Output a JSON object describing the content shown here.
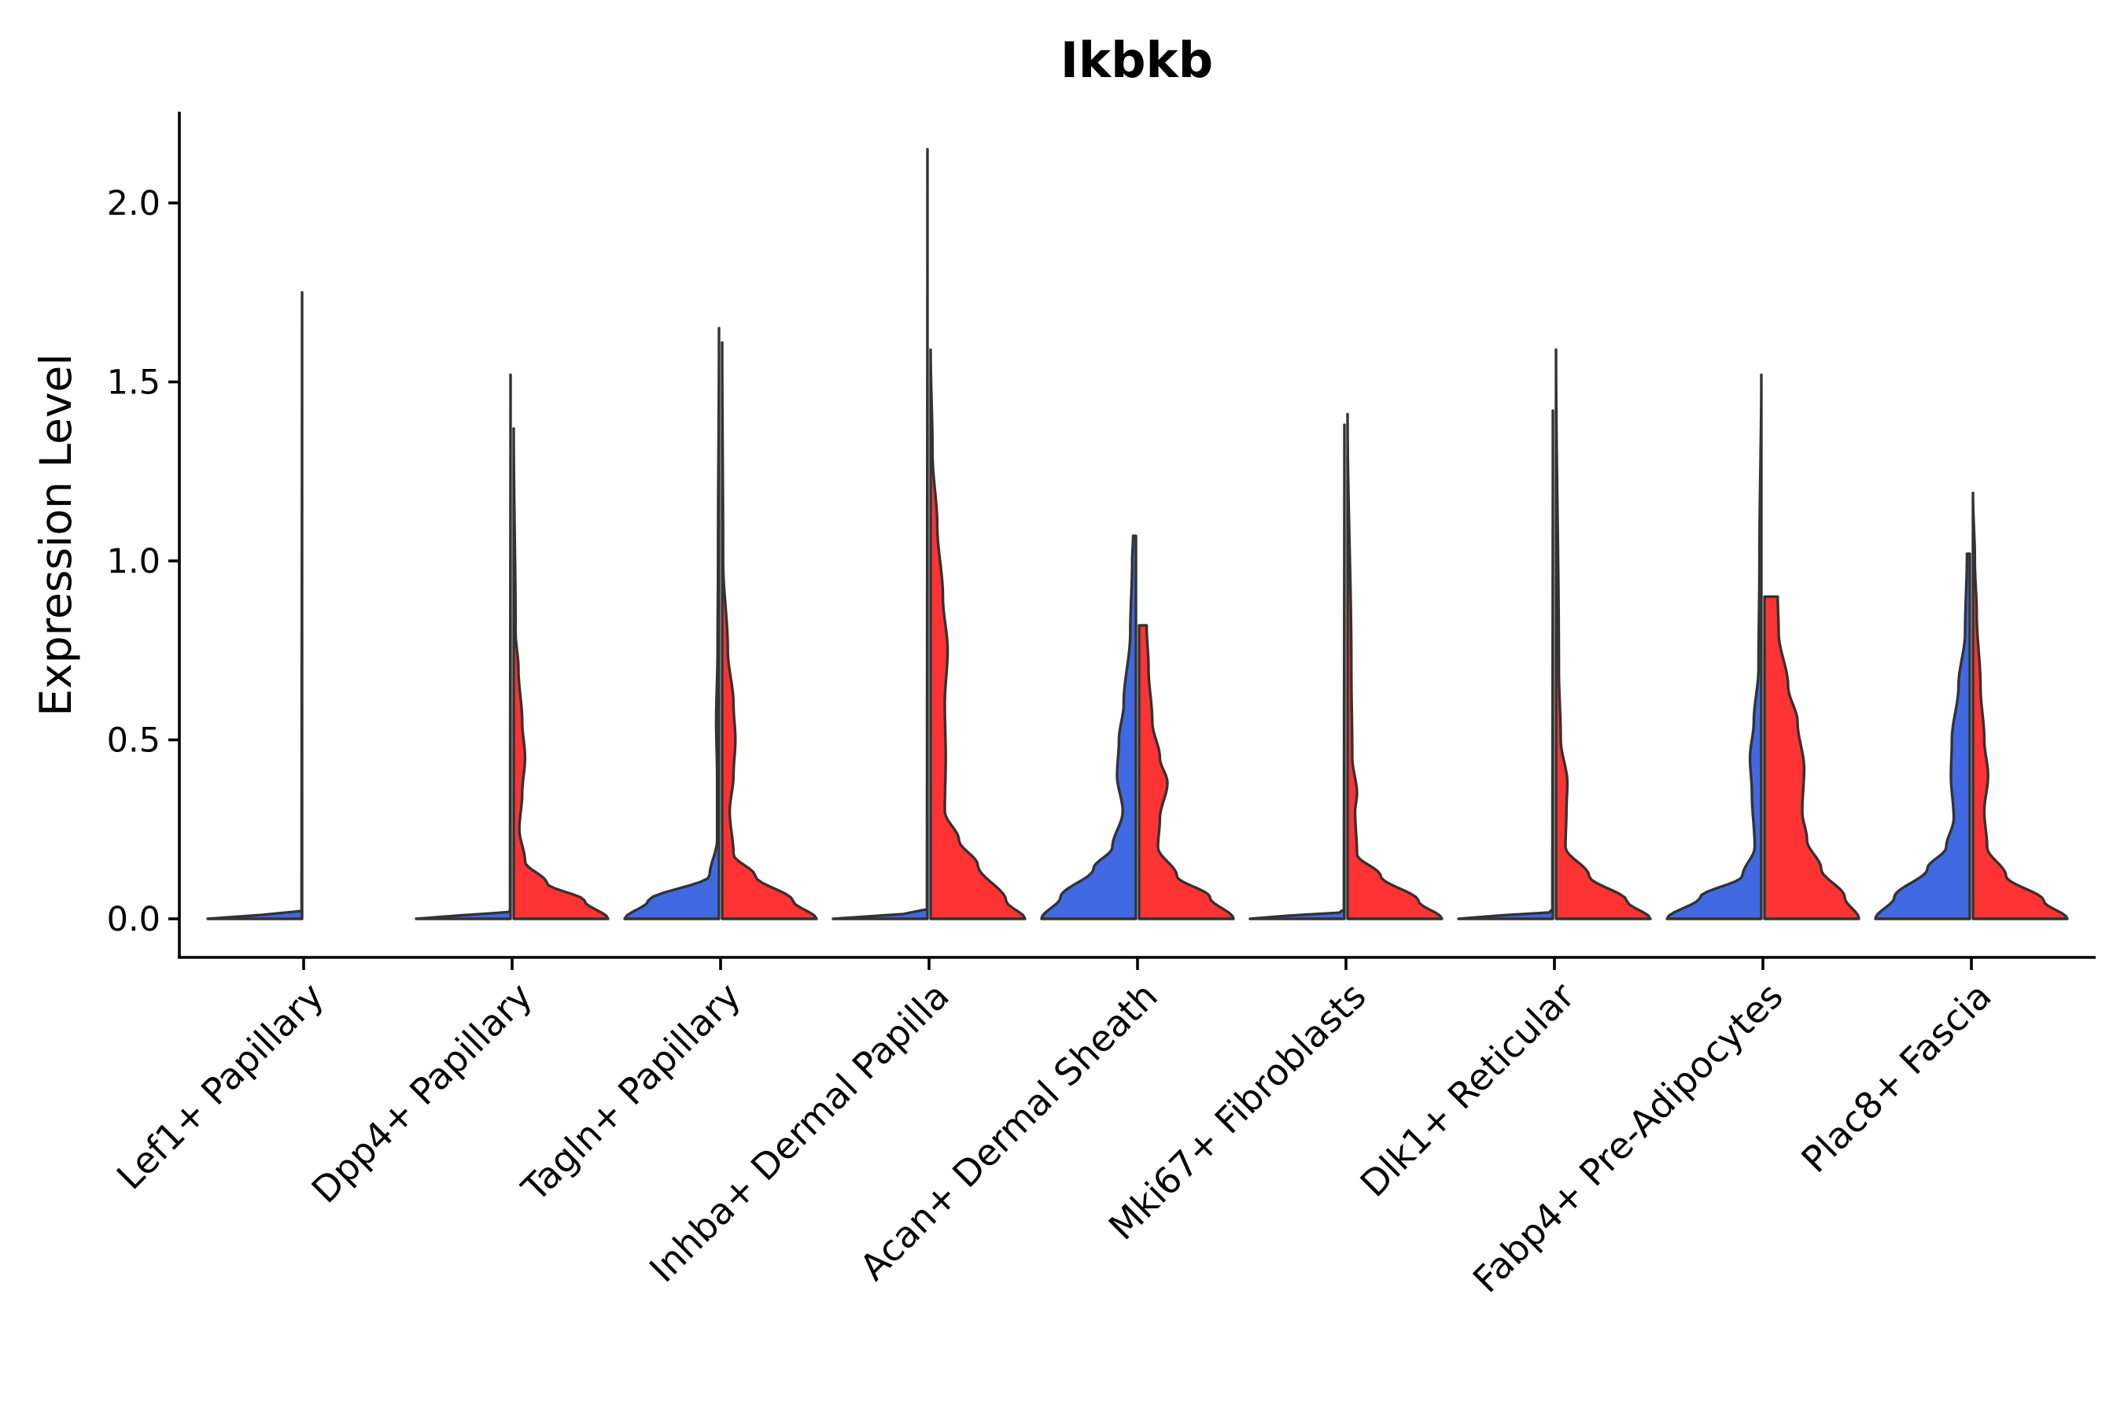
{
  "chart_data": {
    "type": "violin",
    "title": "Ikbkb",
    "xlabel": "",
    "ylabel": "Expression Level",
    "ylim": [
      -0.11,
      2.25
    ],
    "yticks": [
      0.0,
      0.5,
      1.0,
      1.5,
      2.0
    ],
    "ytick_labels": [
      "0.0",
      "0.5",
      "1.0",
      "1.5",
      "2.0"
    ],
    "grid": false,
    "legend": "none",
    "categories": [
      "Lef1+ Papillary",
      "Dpp4+ Papillary",
      "Tagln+ Papillary",
      "Inhba+ Dermal Papilla",
      "Acan+ Dermal Sheath",
      "Mki67+ Fibroblasts",
      "Dlk1+ Reticular",
      "Fabp4+ Pre-Adipocytes",
      "Plac8+ Fascia"
    ],
    "series": [
      {
        "name": "split-1",
        "color": "#4169E1",
        "max_values": [
          1.75,
          1.52,
          1.65,
          2.15,
          1.07,
          1.38,
          1.42,
          1.52,
          1.02
        ],
        "density_profiles": [
          [
            [
              0,
              1.0
            ],
            [
              0.02,
              0.005
            ],
            [
              1.75,
              0.0
            ]
          ],
          [
            [
              0,
              1.0
            ],
            [
              0.02,
              0.005
            ],
            [
              1.52,
              0.0
            ]
          ],
          [
            [
              0,
              1.0
            ],
            [
              0.05,
              0.75
            ],
            [
              0.12,
              0.1
            ],
            [
              0.22,
              0.02
            ],
            [
              0.4,
              0.02
            ],
            [
              0.55,
              0.03
            ],
            [
              0.75,
              0.015
            ],
            [
              1.0,
              0.01
            ],
            [
              1.65,
              0.0
            ]
          ],
          [
            [
              0,
              1.0
            ],
            [
              0.02,
              0.005
            ],
            [
              2.15,
              0.0
            ]
          ],
          [
            [
              0,
              1.0
            ],
            [
              0.06,
              0.8
            ],
            [
              0.14,
              0.45
            ],
            [
              0.2,
              0.25
            ],
            [
              0.3,
              0.14
            ],
            [
              0.4,
              0.2
            ],
            [
              0.5,
              0.18
            ],
            [
              0.6,
              0.13
            ],
            [
              0.8,
              0.06
            ],
            [
              1.0,
              0.04
            ],
            [
              1.07,
              0.03
            ]
          ],
          [
            [
              0,
              1.0
            ],
            [
              0.02,
              0.005
            ],
            [
              1.38,
              0.0
            ]
          ],
          [
            [
              0,
              1.0
            ],
            [
              0.02,
              0.005
            ],
            [
              1.42,
              0.0
            ]
          ],
          [
            [
              0,
              1.0
            ],
            [
              0.06,
              0.65
            ],
            [
              0.12,
              0.2
            ],
            [
              0.2,
              0.07
            ],
            [
              0.35,
              0.1
            ],
            [
              0.45,
              0.12
            ],
            [
              0.55,
              0.08
            ],
            [
              0.7,
              0.03
            ],
            [
              1.0,
              0.02
            ],
            [
              1.52,
              0.0
            ]
          ],
          [
            [
              0,
              1.0
            ],
            [
              0.06,
              0.8
            ],
            [
              0.14,
              0.45
            ],
            [
              0.2,
              0.25
            ],
            [
              0.28,
              0.17
            ],
            [
              0.4,
              0.2
            ],
            [
              0.5,
              0.19
            ],
            [
              0.65,
              0.12
            ],
            [
              0.8,
              0.05
            ],
            [
              1.02,
              0.03
            ]
          ]
        ]
      },
      {
        "name": "split-2",
        "color": "#FF3333",
        "max_values": [
          null,
          1.37,
          1.61,
          1.59,
          0.82,
          1.41,
          1.59,
          0.9,
          1.19
        ],
        "density_profiles": [
          [],
          [
            [
              0,
              1.0
            ],
            [
              0.05,
              0.75
            ],
            [
              0.1,
              0.35
            ],
            [
              0.16,
              0.12
            ],
            [
              0.25,
              0.06
            ],
            [
              0.35,
              0.09
            ],
            [
              0.45,
              0.12
            ],
            [
              0.55,
              0.09
            ],
            [
              0.7,
              0.05
            ],
            [
              0.8,
              0.02
            ],
            [
              1.37,
              0.0
            ]
          ],
          [
            [
              0,
              1.0
            ],
            [
              0.05,
              0.75
            ],
            [
              0.12,
              0.35
            ],
            [
              0.18,
              0.12
            ],
            [
              0.3,
              0.08
            ],
            [
              0.4,
              0.12
            ],
            [
              0.5,
              0.14
            ],
            [
              0.6,
              0.12
            ],
            [
              0.75,
              0.06
            ],
            [
              1.0,
              0.01
            ],
            [
              1.61,
              0.0
            ]
          ],
          [
            [
              0,
              1.0
            ],
            [
              0.05,
              0.8
            ],
            [
              0.15,
              0.5
            ],
            [
              0.22,
              0.3
            ],
            [
              0.3,
              0.15
            ],
            [
              0.45,
              0.16
            ],
            [
              0.6,
              0.15
            ],
            [
              0.75,
              0.18
            ],
            [
              0.9,
              0.13
            ],
            [
              1.1,
              0.07
            ],
            [
              1.3,
              0.02
            ],
            [
              1.59,
              0.0
            ]
          ],
          [
            [
              0,
              1.0
            ],
            [
              0.06,
              0.75
            ],
            [
              0.12,
              0.4
            ],
            [
              0.2,
              0.2
            ],
            [
              0.28,
              0.22
            ],
            [
              0.38,
              0.3
            ],
            [
              0.45,
              0.22
            ],
            [
              0.55,
              0.14
            ],
            [
              0.7,
              0.1
            ],
            [
              0.82,
              0.08
            ]
          ],
          [
            [
              0,
              1.0
            ],
            [
              0.05,
              0.75
            ],
            [
              0.12,
              0.35
            ],
            [
              0.18,
              0.1
            ],
            [
              0.3,
              0.08
            ],
            [
              0.35,
              0.1
            ],
            [
              0.45,
              0.05
            ],
            [
              0.7,
              0.04
            ],
            [
              1.41,
              0.0
            ]
          ],
          [
            [
              0,
              1.0
            ],
            [
              0.05,
              0.75
            ],
            [
              0.12,
              0.35
            ],
            [
              0.2,
              0.1
            ],
            [
              0.3,
              0.11
            ],
            [
              0.38,
              0.12
            ],
            [
              0.5,
              0.05
            ],
            [
              0.7,
              0.03
            ],
            [
              1.59,
              0.0
            ]
          ],
          [
            [
              0,
              1.0
            ],
            [
              0.06,
              0.85
            ],
            [
              0.14,
              0.6
            ],
            [
              0.22,
              0.45
            ],
            [
              0.3,
              0.4
            ],
            [
              0.42,
              0.42
            ],
            [
              0.55,
              0.35
            ],
            [
              0.65,
              0.25
            ],
            [
              0.8,
              0.15
            ],
            [
              0.9,
              0.14
            ]
          ],
          [
            [
              0,
              1.0
            ],
            [
              0.05,
              0.75
            ],
            [
              0.12,
              0.35
            ],
            [
              0.2,
              0.15
            ],
            [
              0.3,
              0.12
            ],
            [
              0.4,
              0.16
            ],
            [
              0.5,
              0.12
            ],
            [
              0.65,
              0.08
            ],
            [
              0.85,
              0.04
            ],
            [
              1.0,
              0.02
            ],
            [
              1.19,
              0.0
            ]
          ]
        ]
      }
    ]
  }
}
